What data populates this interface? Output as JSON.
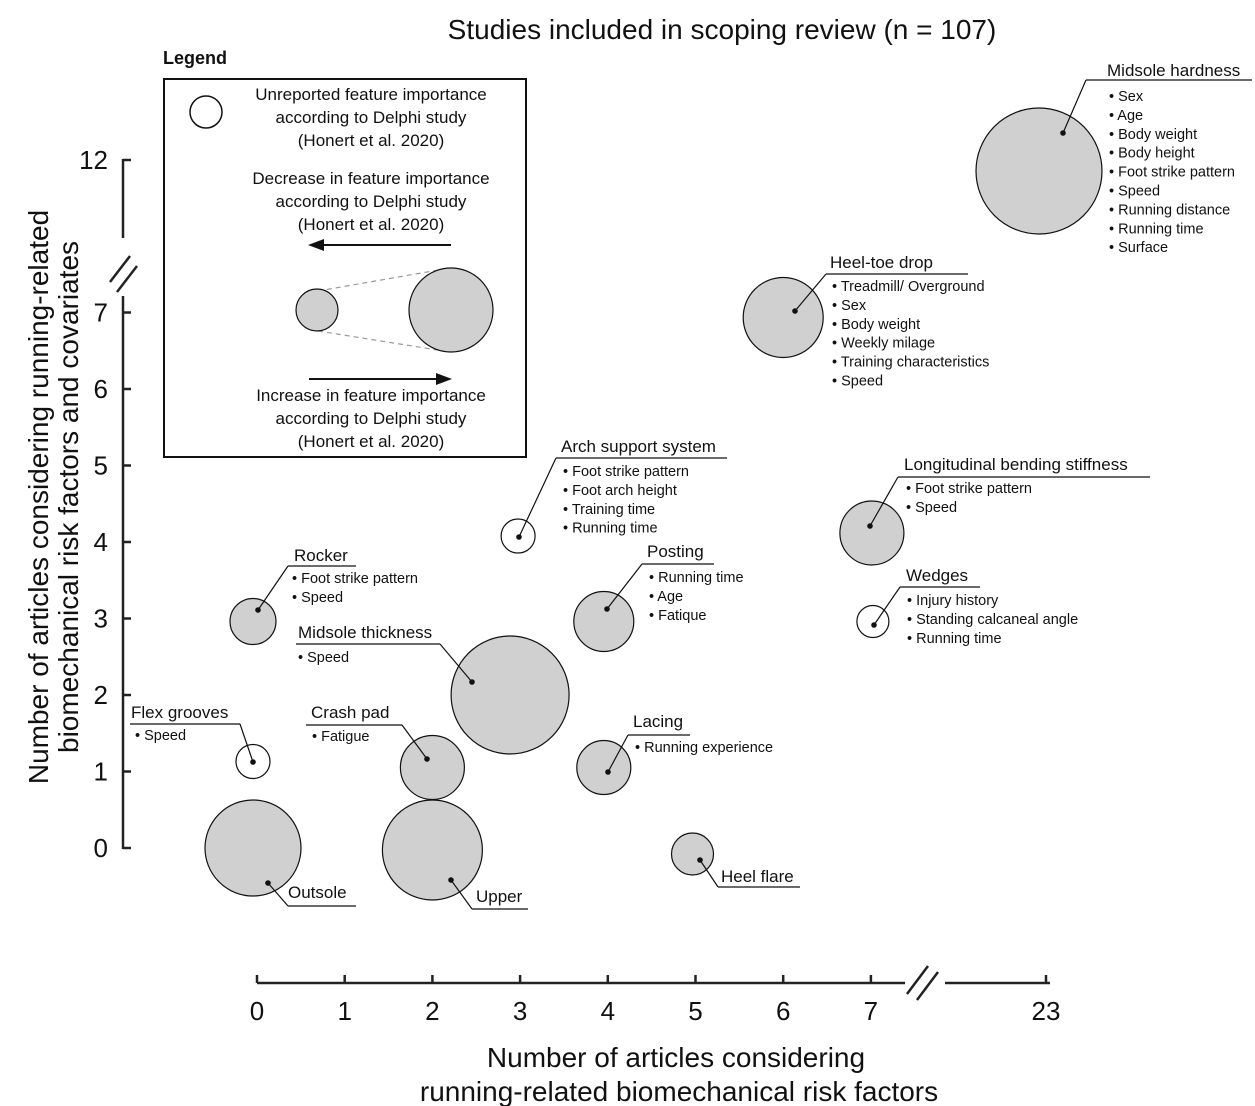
{
  "chart_data": {
    "type": "scatter",
    "title": "Studies included in scoping review (n = 107)",
    "xlabel": [
      "Number of articles considering",
      "running-related biomechanical risk factors"
    ],
    "ylabel": [
      "Number of articles considering running-related",
      "biomechanical risk factors and covariates"
    ],
    "xticks": [
      0,
      1,
      2,
      3,
      4,
      5,
      6,
      7,
      23
    ],
    "yticks": [
      0,
      1,
      2,
      3,
      4,
      5,
      6,
      7,
      12
    ],
    "axis_breaks": {
      "x": [
        7,
        23
      ],
      "y": [
        7,
        12
      ]
    },
    "point_fill": "#d0d0d0",
    "unreported_fill": "#ffffff",
    "points": [
      {
        "label": "Midsole hardness",
        "x": 23,
        "y": 12,
        "fill": "grey",
        "covariates": [
          "Sex",
          "Age",
          "Body weight",
          "Body height",
          "Foot strike pattern",
          "Speed",
          "Running distance",
          "Running time",
          "Surface"
        ]
      },
      {
        "label": "Heel-toe drop",
        "x": 6,
        "y": 7,
        "fill": "grey",
        "covariates": [
          "Treadmill/ Overground",
          "Sex",
          "Body weight",
          "Weekly milage",
          "Training characteristics",
          "Speed"
        ]
      },
      {
        "label": "Arch support system",
        "x": 3,
        "y": 4,
        "fill": "white",
        "covariates": [
          "Foot strike pattern",
          "Foot arch height",
          "Training time",
          "Running time"
        ]
      },
      {
        "label": "Longitudinal bending stiffness",
        "x": 7,
        "y": 4,
        "fill": "grey",
        "covariates": [
          "Foot strike pattern",
          "Speed"
        ]
      },
      {
        "label": "Rocker",
        "x": 0,
        "y": 3,
        "fill": "grey",
        "covariates": [
          "Foot strike pattern",
          "Speed"
        ]
      },
      {
        "label": "Posting",
        "x": 4,
        "y": 3,
        "fill": "grey",
        "covariates": [
          "Running time",
          "Age",
          "Fatique"
        ]
      },
      {
        "label": "Wedges",
        "x": 7,
        "y": 3,
        "fill": "white",
        "covariates": [
          "Injury history",
          "Standing calcaneal angle",
          "Running time"
        ]
      },
      {
        "label": "Midsole thickness",
        "x": 3,
        "y": 2,
        "fill": "grey",
        "covariates": [
          "Speed"
        ]
      },
      {
        "label": "Flex grooves",
        "x": 0,
        "y": 1,
        "fill": "white",
        "covariates": [
          "Speed"
        ]
      },
      {
        "label": "Crash pad",
        "x": 2,
        "y": 1,
        "fill": "grey",
        "covariates": [
          "Fatigue"
        ]
      },
      {
        "label": "Lacing",
        "x": 4,
        "y": 1,
        "fill": "grey",
        "covariates": [
          "Running experience"
        ]
      },
      {
        "label": "Outsole",
        "x": 0,
        "y": 0,
        "fill": "grey",
        "covariates": []
      },
      {
        "label": "Upper",
        "x": 2,
        "y": 0,
        "fill": "grey",
        "covariates": []
      },
      {
        "label": "Heel flare",
        "x": 5,
        "y": 0,
        "fill": "grey",
        "covariates": []
      }
    ]
  },
  "legend": {
    "title": "Legend",
    "unreported": [
      "Unreported feature importance",
      "according to Delphi study",
      "(Honert et al. 2020)"
    ],
    "decrease": [
      "Decrease in feature importance",
      "according to Delphi study",
      "(Honert et al. 2020)"
    ],
    "increase": [
      "Increase in feature importance",
      "according to Delphi study",
      "(Honert et al. 2020)"
    ]
  }
}
